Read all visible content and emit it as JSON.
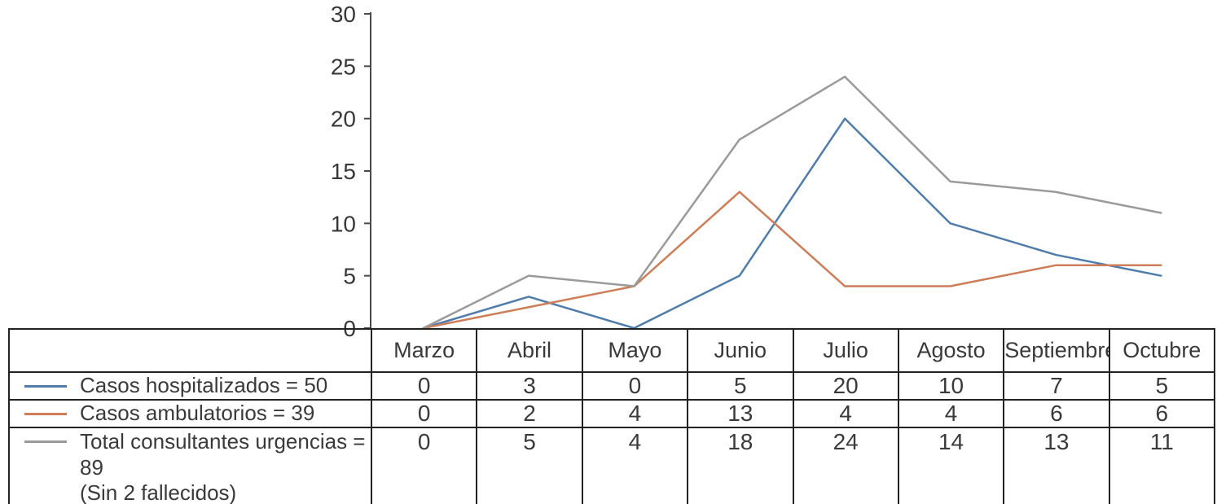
{
  "chart_data": {
    "type": "line",
    "title": "",
    "xlabel": "",
    "ylabel": "",
    "categories": [
      "Marzo",
      "Abril",
      "Mayo",
      "Junio",
      "Julio",
      "Agosto",
      "Septiembre",
      "Octubre"
    ],
    "series": [
      {
        "name": "Casos hospitalizados = 50",
        "color": "#4f7cab",
        "values": [
          0,
          3,
          0,
          5,
          20,
          10,
          7,
          5
        ]
      },
      {
        "name": "Casos ambulatorios = 39",
        "color": "#cd7e58",
        "values": [
          0,
          2,
          4,
          13,
          4,
          4,
          6,
          6
        ]
      },
      {
        "name": "Total consultantes urgencias = 89",
        "name_line2": "(Sin 2 fallecidos)",
        "color": "#9a9a9a",
        "values": [
          0,
          5,
          4,
          18,
          24,
          14,
          13,
          11
        ]
      }
    ],
    "ylim": [
      0,
      30
    ],
    "yticks": [
      0,
      5,
      10,
      15,
      20,
      25,
      30
    ],
    "grid": false,
    "legend_position": "left column of table rows"
  },
  "colors": {
    "axis": "#4a4a4a",
    "text": "#383838",
    "table_border": "#222222",
    "background": "#ffffff"
  }
}
